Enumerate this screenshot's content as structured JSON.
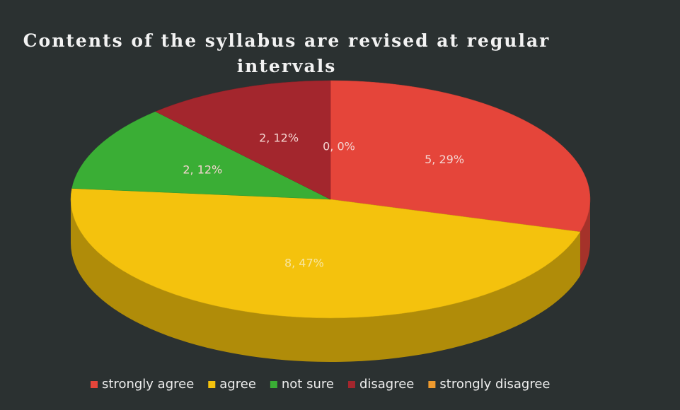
{
  "chart_data": {
    "type": "pie3d",
    "title": "Contents of the syllabus are revised at regular intervals",
    "categories": [
      "strongly agree",
      "agree",
      "not sure",
      "disagree",
      "strongly disagree"
    ],
    "values": [
      5,
      8,
      2,
      2,
      0
    ],
    "value_labels": [
      "5, 29%",
      "8, 47%",
      "2, 12%",
      "2, 12%",
      "0, 0%"
    ],
    "colors": [
      "#e5453a",
      "#f4c20d",
      "#3aae35",
      "#a3262d",
      "#ee9a2e"
    ],
    "legend": "bottom"
  }
}
